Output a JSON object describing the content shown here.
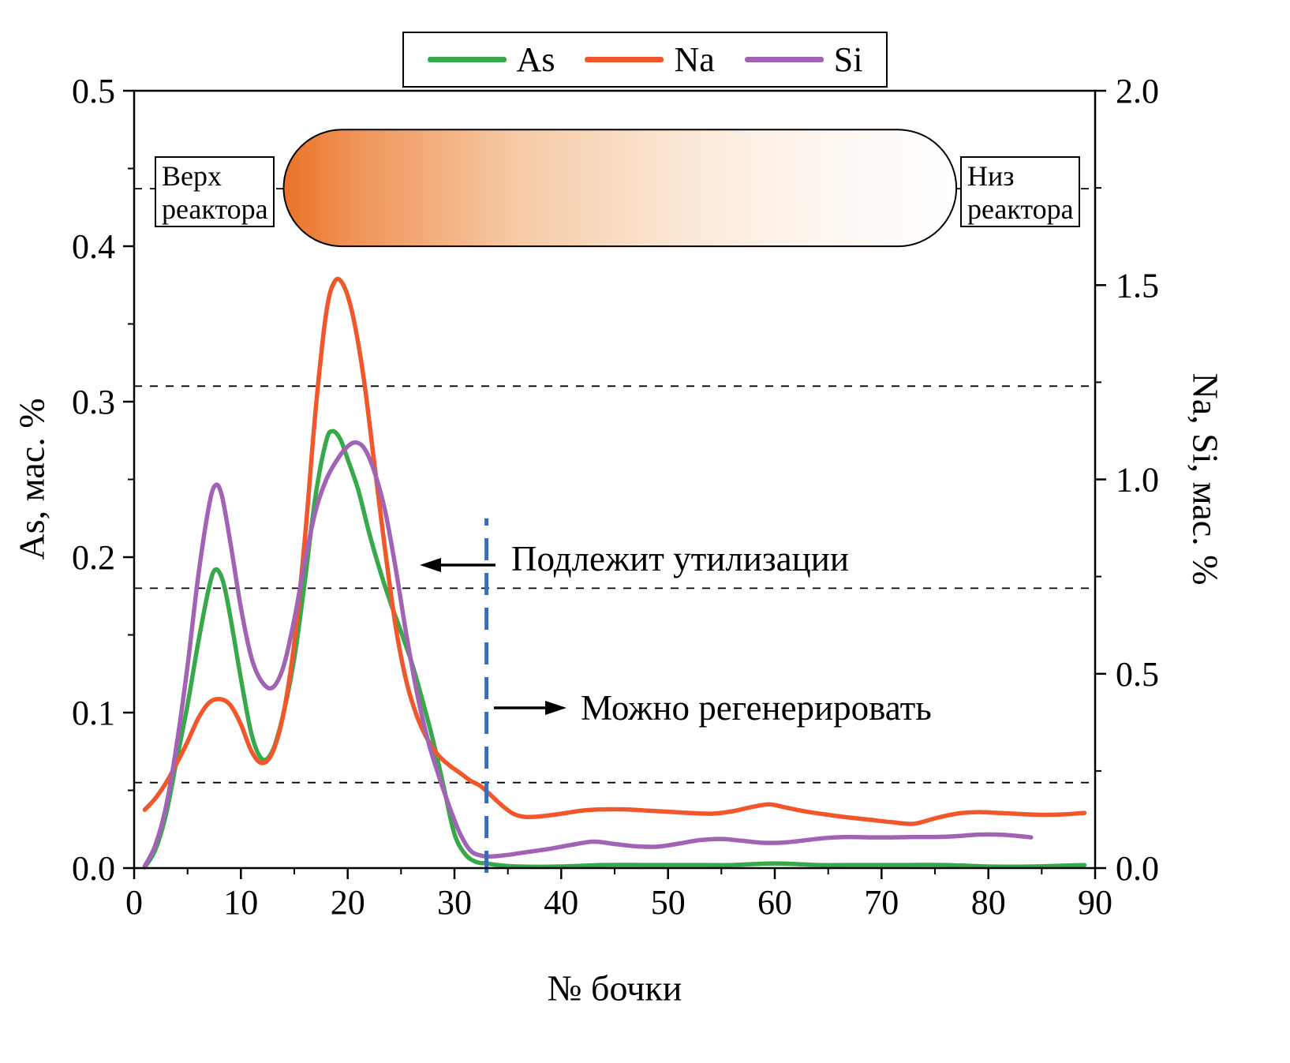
{
  "annotations": {
    "disposal": "Подлежит утилизации",
    "regenerate": "Можно регенерировать"
  },
  "reactor": {
    "top_label": "Верх реактора",
    "bottom_label": "Низ реактора"
  },
  "chart_data": {
    "type": "line",
    "x_axis": {
      "label": "№ бочки",
      "min": 0,
      "max": 90,
      "major_ticks": [
        0,
        10,
        20,
        30,
        40,
        50,
        60,
        70,
        80,
        90
      ],
      "major_labels": [
        "0",
        "10",
        "20",
        "30",
        "40",
        "50",
        "60",
        "70",
        "80",
        "90"
      ],
      "minor_step": 5
    },
    "y_left": {
      "label": "As, мас. %",
      "min": 0,
      "max": 0.5,
      "major_ticks": [
        0,
        0.1,
        0.2,
        0.3,
        0.4,
        0.5
      ],
      "major_labels": [
        "0.0",
        "0.1",
        "0.2",
        "0.3",
        "0.4",
        "0.5"
      ],
      "minor_step": 0.05
    },
    "y_right": {
      "label": "Na, Si, мас. %",
      "min": 0,
      "max": 2,
      "major_ticks": [
        0,
        0.5,
        1,
        1.5,
        2
      ],
      "major_labels": [
        "0.0",
        "0.5",
        "1.0",
        "1.5",
        "2.0"
      ],
      "minor_step": 0.25
    },
    "series": [
      {
        "name": "As",
        "axis": "left",
        "color": "#38a94b",
        "points": [
          [
            1,
            0
          ],
          [
            2,
            0.012
          ],
          [
            3,
            0.035
          ],
          [
            4,
            0.07
          ],
          [
            5,
            0.105
          ],
          [
            6,
            0.145
          ],
          [
            7,
            0.18
          ],
          [
            7.6,
            0.192
          ],
          [
            8.3,
            0.185
          ],
          [
            9,
            0.162
          ],
          [
            10,
            0.122
          ],
          [
            11,
            0.086
          ],
          [
            12,
            0.07
          ],
          [
            13,
            0.076
          ],
          [
            14,
            0.1
          ],
          [
            15,
            0.135
          ],
          [
            16,
            0.185
          ],
          [
            17,
            0.24
          ],
          [
            18,
            0.275
          ],
          [
            18.6,
            0.281
          ],
          [
            19.3,
            0.276
          ],
          [
            20,
            0.263
          ],
          [
            21,
            0.243
          ],
          [
            22,
            0.216
          ],
          [
            23,
            0.192
          ],
          [
            24,
            0.171
          ],
          [
            25,
            0.152
          ],
          [
            26,
            0.132
          ],
          [
            27,
            0.108
          ],
          [
            28,
            0.082
          ],
          [
            29,
            0.052
          ],
          [
            30,
            0.022
          ],
          [
            31,
            0.009
          ],
          [
            32,
            0.004
          ],
          [
            33,
            0.003
          ],
          [
            34,
            0.002
          ],
          [
            36,
            0.001
          ],
          [
            40,
            0.001
          ],
          [
            44,
            0.002
          ],
          [
            48,
            0.002
          ],
          [
            52,
            0.002
          ],
          [
            56,
            0.002
          ],
          [
            60,
            0.003
          ],
          [
            64,
            0.002
          ],
          [
            68,
            0.002
          ],
          [
            72,
            0.002
          ],
          [
            76,
            0.002
          ],
          [
            80,
            0.001
          ],
          [
            84,
            0.001
          ],
          [
            89,
            0.002
          ]
        ]
      },
      {
        "name": "Na",
        "axis": "right",
        "color": "#f2572b",
        "points": [
          [
            1,
            0.15
          ],
          [
            2,
            0.18
          ],
          [
            3,
            0.22
          ],
          [
            4,
            0.27
          ],
          [
            5,
            0.325
          ],
          [
            6,
            0.385
          ],
          [
            7,
            0.425
          ],
          [
            8,
            0.435
          ],
          [
            9,
            0.42
          ],
          [
            10,
            0.37
          ],
          [
            11,
            0.3
          ],
          [
            12,
            0.27
          ],
          [
            13,
            0.3
          ],
          [
            14,
            0.4
          ],
          [
            15,
            0.58
          ],
          [
            16,
            0.85
          ],
          [
            17,
            1.18
          ],
          [
            18,
            1.43
          ],
          [
            18.8,
            1.51
          ],
          [
            19.6,
            1.5
          ],
          [
            20.5,
            1.42
          ],
          [
            21.5,
            1.26
          ],
          [
            22.5,
            1.04
          ],
          [
            23.5,
            0.82
          ],
          [
            24.5,
            0.62
          ],
          [
            25.5,
            0.48
          ],
          [
            26.5,
            0.39
          ],
          [
            27.5,
            0.33
          ],
          [
            28.5,
            0.29
          ],
          [
            29.5,
            0.265
          ],
          [
            30.5,
            0.245
          ],
          [
            31.5,
            0.225
          ],
          [
            32.5,
            0.21
          ],
          [
            33.5,
            0.185
          ],
          [
            34.5,
            0.16
          ],
          [
            35.5,
            0.14
          ],
          [
            36.5,
            0.132
          ],
          [
            38,
            0.133
          ],
          [
            40,
            0.14
          ],
          [
            42,
            0.148
          ],
          [
            44,
            0.151
          ],
          [
            46,
            0.151
          ],
          [
            48,
            0.148
          ],
          [
            50,
            0.145
          ],
          [
            52,
            0.142
          ],
          [
            54,
            0.14
          ],
          [
            56,
            0.146
          ],
          [
            58,
            0.158
          ],
          [
            59.5,
            0.164
          ],
          [
            61,
            0.156
          ],
          [
            63,
            0.145
          ],
          [
            65,
            0.137
          ],
          [
            67,
            0.13
          ],
          [
            69,
            0.124
          ],
          [
            71,
            0.118
          ],
          [
            73,
            0.114
          ],
          [
            75,
            0.128
          ],
          [
            77,
            0.14
          ],
          [
            79,
            0.144
          ],
          [
            81,
            0.142
          ],
          [
            83,
            0.139
          ],
          [
            85,
            0.137
          ],
          [
            87,
            0.138
          ],
          [
            89,
            0.142
          ]
        ]
      },
      {
        "name": "Si",
        "axis": "right",
        "color": "#a164b5",
        "points": [
          [
            1,
            0.005
          ],
          [
            2,
            0.06
          ],
          [
            3,
            0.16
          ],
          [
            4,
            0.32
          ],
          [
            5,
            0.52
          ],
          [
            6,
            0.75
          ],
          [
            7,
            0.93
          ],
          [
            7.6,
            0.985
          ],
          [
            8.2,
            0.96
          ],
          [
            9,
            0.84
          ],
          [
            10,
            0.67
          ],
          [
            11,
            0.54
          ],
          [
            12,
            0.478
          ],
          [
            13,
            0.465
          ],
          [
            14,
            0.52
          ],
          [
            15,
            0.64
          ],
          [
            16,
            0.79
          ],
          [
            17,
            0.92
          ],
          [
            18,
            1.0
          ],
          [
            19,
            1.05
          ],
          [
            20,
            1.085
          ],
          [
            20.8,
            1.095
          ],
          [
            21.6,
            1.078
          ],
          [
            22.5,
            1.02
          ],
          [
            23.5,
            0.92
          ],
          [
            24.5,
            0.77
          ],
          [
            25.5,
            0.6
          ],
          [
            26.5,
            0.45
          ],
          [
            27.5,
            0.33
          ],
          [
            28.5,
            0.24
          ],
          [
            29.5,
            0.16
          ],
          [
            30.5,
            0.09
          ],
          [
            31.5,
            0.045
          ],
          [
            32.5,
            0.032
          ],
          [
            33.5,
            0.03
          ],
          [
            35,
            0.034
          ],
          [
            37,
            0.042
          ],
          [
            39,
            0.05
          ],
          [
            41,
            0.06
          ],
          [
            43,
            0.068
          ],
          [
            45,
            0.062
          ],
          [
            47,
            0.056
          ],
          [
            49,
            0.055
          ],
          [
            51,
            0.063
          ],
          [
            53,
            0.072
          ],
          [
            55,
            0.075
          ],
          [
            57,
            0.07
          ],
          [
            59,
            0.065
          ],
          [
            61,
            0.066
          ],
          [
            63,
            0.072
          ],
          [
            65,
            0.078
          ],
          [
            67,
            0.08
          ],
          [
            69,
            0.079
          ],
          [
            71,
            0.079
          ],
          [
            73,
            0.08
          ],
          [
            75,
            0.08
          ],
          [
            77,
            0.082
          ],
          [
            79,
            0.086
          ],
          [
            81,
            0.086
          ],
          [
            83,
            0.082
          ],
          [
            84,
            0.079
          ]
        ]
      }
    ],
    "reference_lines_left_axis": [
      0.31,
      0.18,
      0.055
    ],
    "divider": {
      "x": 33,
      "top_value_left_axis": 0.225,
      "color": "#3a6cb5"
    },
    "reactor_capsule": {
      "x_range": [
        14,
        77
      ],
      "y_range_left": [
        0.4,
        0.475
      ],
      "connector_y_left": 0.437,
      "gradient_stops": [
        [
          0,
          "#ea7227"
        ],
        [
          0.1,
          "#ef9255"
        ],
        [
          0.35,
          "#f6cba6"
        ],
        [
          0.6,
          "#fbe8d7"
        ],
        [
          0.8,
          "#fef7f1"
        ],
        [
          1,
          "#ffffff"
        ]
      ]
    },
    "legend_position": "top-center",
    "grid": "off"
  }
}
